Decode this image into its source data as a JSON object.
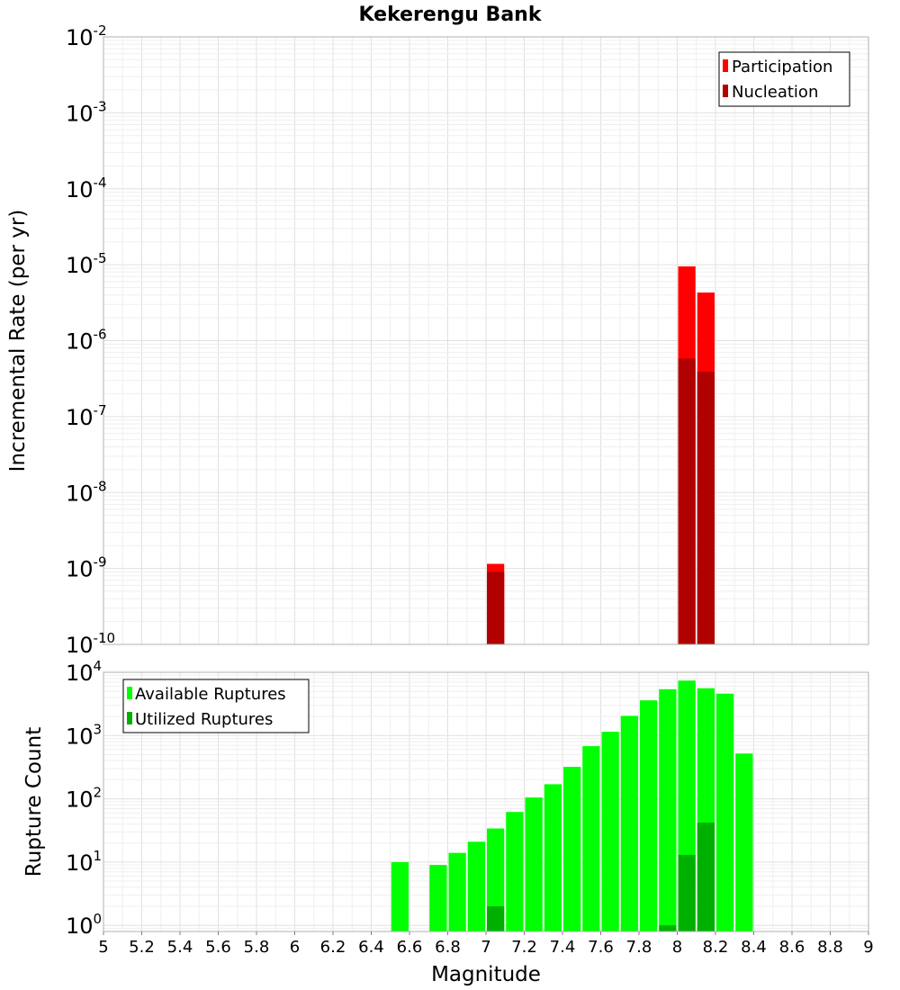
{
  "chart_data": [
    {
      "type": "bar",
      "title": "Kekerengu Bank",
      "xlabel": "",
      "ylabel": "Incremental Rate (per yr)",
      "yscale": "log",
      "xlim": [
        5,
        9
      ],
      "ylim": [
        1e-10,
        0.01
      ],
      "grid": true,
      "legend_position": "top-right",
      "bin_width": 0.1,
      "y_ticks": [
        {
          "base": "10",
          "exp": "-10",
          "value": 1e-10
        },
        {
          "base": "10",
          "exp": "-9",
          "value": 1e-09
        },
        {
          "base": "10",
          "exp": "-8",
          "value": 1e-08
        },
        {
          "base": "10",
          "exp": "-7",
          "value": 1e-07
        },
        {
          "base": "10",
          "exp": "-6",
          "value": 1e-06
        },
        {
          "base": "10",
          "exp": "-5",
          "value": 1e-05
        },
        {
          "base": "10",
          "exp": "-4",
          "value": 0.0001
        },
        {
          "base": "10",
          "exp": "-3",
          "value": 0.001
        },
        {
          "base": "10",
          "exp": "-2",
          "value": 0.01
        }
      ],
      "series": [
        {
          "name": "Participation",
          "color": "#ff0000",
          "points": [
            {
              "x": 7.05,
              "y": 1.15e-09
            },
            {
              "x": 8.05,
              "y": 9.5e-06
            },
            {
              "x": 8.15,
              "y": 4.3e-06
            }
          ]
        },
        {
          "name": "Nucleation",
          "color": "#b00000",
          "points": [
            {
              "x": 7.05,
              "y": 9e-10
            },
            {
              "x": 8.05,
              "y": 5.8e-07
            },
            {
              "x": 8.15,
              "y": 3.9e-07
            }
          ]
        }
      ]
    },
    {
      "type": "bar",
      "title": "",
      "xlabel": "Magnitude",
      "ylabel": "Rupture Count",
      "yscale": "log",
      "xlim": [
        5,
        9
      ],
      "ylim": [
        0.8,
        10000
      ],
      "grid": true,
      "legend_position": "top-left",
      "bin_width": 0.1,
      "x_ticks": [
        "5",
        "5.2",
        "5.4",
        "5.6",
        "5.8",
        "6",
        "6.2",
        "6.4",
        "6.6",
        "6.8",
        "7",
        "7.2",
        "7.4",
        "7.6",
        "7.8",
        "8",
        "8.2",
        "8.4",
        "8.6",
        "8.8",
        "9"
      ],
      "y_ticks": [
        {
          "base": "10",
          "exp": "0",
          "value": 1
        },
        {
          "base": "10",
          "exp": "1",
          "value": 10
        },
        {
          "base": "10",
          "exp": "2",
          "value": 100
        },
        {
          "base": "10",
          "exp": "3",
          "value": 1000
        },
        {
          "base": "10",
          "exp": "4",
          "value": 10000
        }
      ],
      "series": [
        {
          "name": "Available Ruptures",
          "color": "#00ff00",
          "points": [
            {
              "x": 6.55,
              "y": 10
            },
            {
              "x": 6.75,
              "y": 9
            },
            {
              "x": 6.85,
              "y": 14
            },
            {
              "x": 6.95,
              "y": 21
            },
            {
              "x": 7.05,
              "y": 34
            },
            {
              "x": 7.15,
              "y": 62
            },
            {
              "x": 7.25,
              "y": 105
            },
            {
              "x": 7.35,
              "y": 170
            },
            {
              "x": 7.45,
              "y": 320
            },
            {
              "x": 7.55,
              "y": 680
            },
            {
              "x": 7.65,
              "y": 1150
            },
            {
              "x": 7.75,
              "y": 2050
            },
            {
              "x": 7.85,
              "y": 3600
            },
            {
              "x": 7.95,
              "y": 5400
            },
            {
              "x": 8.05,
              "y": 7400
            },
            {
              "x": 8.15,
              "y": 5600
            },
            {
              "x": 8.25,
              "y": 4600
            },
            {
              "x": 8.35,
              "y": 520
            }
          ]
        },
        {
          "name": "Utilized Ruptures",
          "color": "#00b000",
          "points": [
            {
              "x": 7.05,
              "y": 2
            },
            {
              "x": 7.95,
              "y": 1
            },
            {
              "x": 8.05,
              "y": 13
            },
            {
              "x": 8.15,
              "y": 42
            }
          ]
        }
      ]
    }
  ]
}
